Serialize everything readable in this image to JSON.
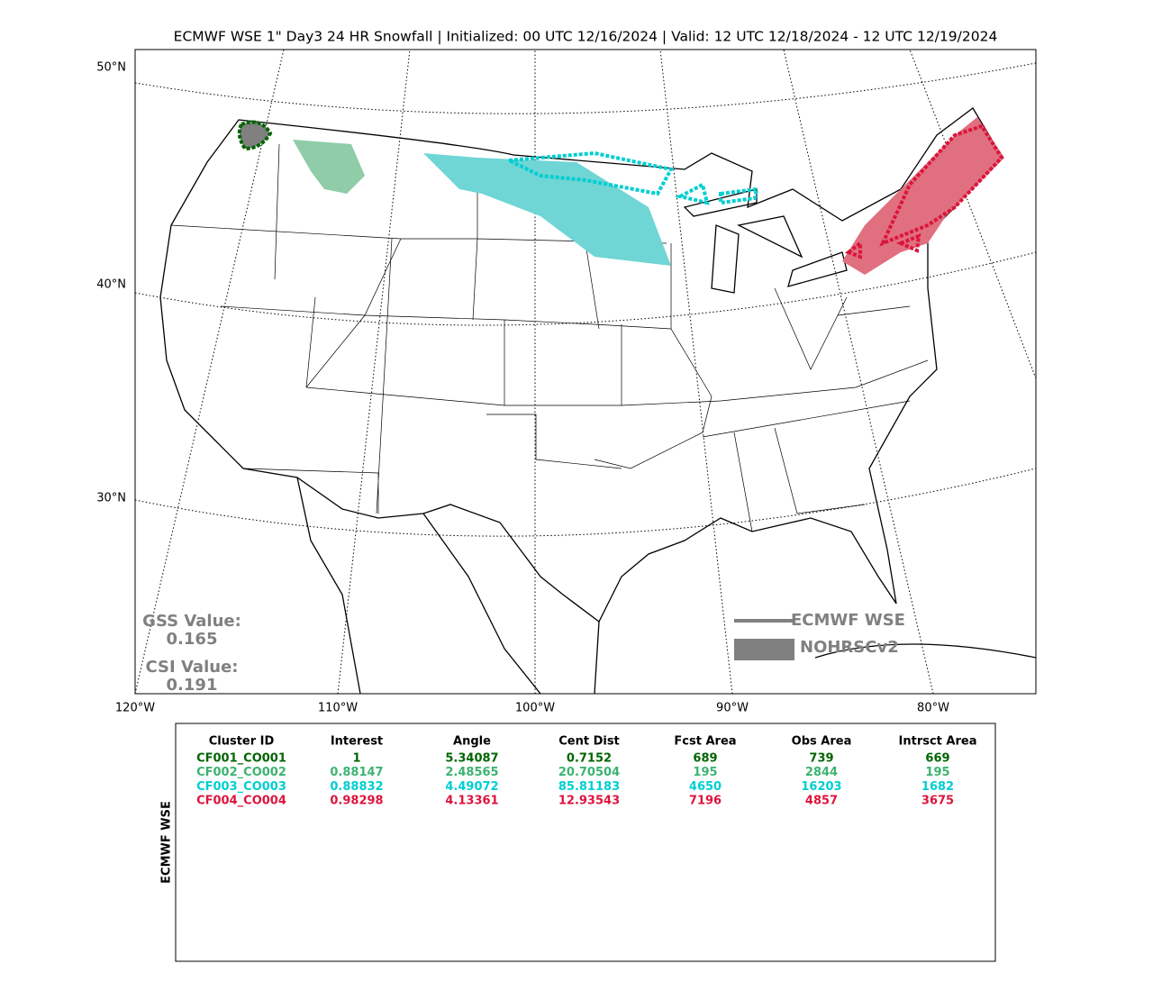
{
  "title": "ECMWF WSE 1\" Day3 24 HR Snowfall | Initialized: 00 UTC 12/16/2024 | Valid: 12 UTC 12/18/2024 - 12 UTC 12/19/2024",
  "map": {
    "lat_labels": [
      "50°N",
      "40°N",
      "30°N"
    ],
    "lon_labels": [
      "120°W",
      "110°W",
      "100°W",
      "90°W",
      "80°W"
    ]
  },
  "stats": [
    {
      "label": "GSS Value:",
      "value": "0.165"
    },
    {
      "label": "CSI Value:",
      "value": "0.191"
    }
  ],
  "legend": [
    "ECMWF WSE",
    "NOHRSCv2"
  ],
  "table": {
    "side_label": "ECMWF WSE",
    "header": [
      "Cluster ID",
      "Interest",
      "Angle",
      "Cent Dist",
      "Fcst Area",
      "Obs Area",
      "Intrsct Area"
    ],
    "rows": [
      [
        "CF001_CO001",
        "1",
        "5.34087",
        "0.7152",
        "689",
        "739",
        "669"
      ],
      [
        "CF002_CO002",
        "0.88147",
        "2.48565",
        "20.70504",
        "195",
        "2844",
        "195"
      ],
      [
        "CF003_CO003",
        "0.88832",
        "4.49072",
        "85.81183",
        "4650",
        "16203",
        "1682"
      ],
      [
        "CF004_CO004",
        "0.98298",
        "4.13361",
        "12.93543",
        "7196",
        "4857",
        "3675"
      ]
    ],
    "row_colors": [
      "#006400",
      "#3cb371",
      "#00ced1",
      "#dc143c"
    ]
  }
}
